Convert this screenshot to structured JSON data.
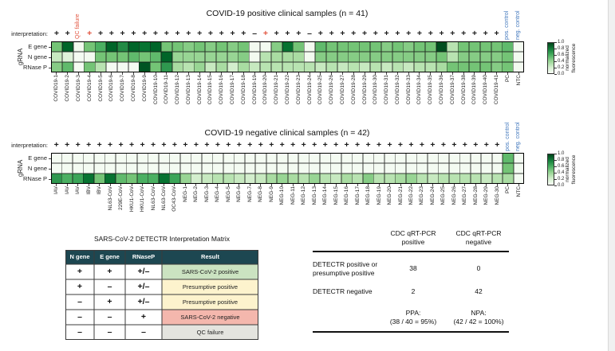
{
  "chart_data": [
    {
      "type": "heatmap",
      "title": "COVID-19 positive clinical samples (n = 41)",
      "interpretation_label": "interpretation:",
      "row_axis_label": "gRNA",
      "rows": [
        "E gene",
        "N gene",
        "RNase P"
      ],
      "columns": [
        "COVID19-1",
        "COVID19-2",
        "COVID19-3",
        "COVID19-4",
        "COVID19-5",
        "COVID19-6",
        "COVID19-7",
        "COVID19-8",
        "COVID19-9",
        "COVID19-10",
        "COVID19-11",
        "COVID19-12",
        "COVID19-13",
        "COVID19-14",
        "COVID19-15",
        "COVID19-16",
        "COVID19-17",
        "COVID19-18",
        "COVID19-19",
        "COVID19-20",
        "COVID19-21",
        "COVID19-22",
        "COVID19-23",
        "COVID19-24",
        "COVID19-25",
        "COVID19-26",
        "COVID19-27",
        "COVID19-28",
        "COVID19-29",
        "COVID19-30",
        "COVID19-31",
        "COVID19-32",
        "COVID19-33",
        "COVID19-34",
        "COVID19-35",
        "COVID19-36",
        "COVID19-37",
        "COVID19-38",
        "COVID19-39",
        "COVID19-40",
        "COVID19-41",
        "PC",
        "NTC"
      ],
      "interpretations": [
        "+",
        "+",
        "QC failure",
        "+*",
        "+",
        "+",
        "+",
        "+",
        "+",
        "+",
        "+",
        "+",
        "+",
        "+",
        "+",
        "+",
        "+",
        "+",
        "–",
        "+*",
        "+",
        "+",
        "+",
        "–",
        "+",
        "+",
        "+",
        "+",
        "+",
        "+",
        "+",
        "+",
        "+",
        "+",
        "+",
        "+",
        "+",
        "+",
        "+",
        "+",
        "+",
        "",
        ""
      ],
      "control_labels": [
        "pos. control",
        "neg. control"
      ],
      "series": [
        {
          "name": "E gene",
          "values": [
            0.5,
            0.9,
            0.05,
            0.5,
            0.6,
            0.9,
            0.75,
            0.9,
            0.85,
            0.9,
            0.5,
            0.5,
            0.45,
            0.5,
            0.45,
            0.5,
            0.45,
            0.5,
            0.03,
            0.03,
            0.45,
            0.85,
            0.5,
            0.03,
            0.55,
            0.5,
            0.5,
            0.5,
            0.5,
            0.5,
            0.45,
            0.5,
            0.45,
            0.5,
            0.5,
            0.97,
            0.3,
            0.5,
            0.5,
            0.5,
            0.5,
            0.55,
            0.03
          ]
        },
        {
          "name": "N gene",
          "values": [
            0.25,
            0.15,
            0.02,
            0.03,
            0.5,
            0.5,
            0.5,
            0.55,
            0.5,
            0.55,
            0.9,
            0.4,
            0.4,
            0.4,
            0.4,
            0.4,
            0.4,
            0.45,
            0.03,
            0.3,
            0.35,
            0.35,
            0.35,
            0.03,
            0.45,
            0.45,
            0.45,
            0.45,
            0.45,
            0.45,
            0.45,
            0.45,
            0.45,
            0.45,
            0.45,
            0.5,
            0.3,
            0.45,
            0.45,
            0.45,
            0.45,
            0.5,
            0.03
          ]
        },
        {
          "name": "RNase P",
          "values": [
            0.45,
            0.55,
            0.02,
            0.5,
            0.3,
            0.02,
            0.02,
            0.02,
            0.95,
            0.5,
            0.7,
            0.35,
            0.3,
            0.4,
            0.25,
            0.35,
            0.2,
            0.35,
            0.25,
            0.3,
            0.3,
            0.3,
            0.3,
            0.3,
            0.25,
            0.3,
            0.25,
            0.3,
            0.25,
            0.3,
            0.25,
            0.3,
            0.25,
            0.3,
            0.3,
            0.35,
            0.5,
            0.5,
            0.5,
            0.5,
            0.45,
            0.5,
            0.03
          ]
        }
      ],
      "value_range": [
        0,
        1
      ],
      "colorbar": {
        "ticks": [
          "1.0",
          "0.8",
          "0.6",
          "0.4",
          "0.2",
          "0.0"
        ],
        "label_line1": "normalized",
        "label_line2": "fluorescence"
      }
    },
    {
      "type": "heatmap",
      "title": "COVID-19 negative clinical samples (n = 42)",
      "interpretation_label": "interpretation:",
      "row_axis_label": "gRNA",
      "rows": [
        "E gene",
        "N gene",
        "RNase P"
      ],
      "columns": [
        "IAV",
        "IAV",
        "IAV",
        "IBV",
        "IBV",
        "NL63-CoV",
        "229E-CoV",
        "HKU1-CoV",
        "HKU1-CoV",
        "NL63-CoV",
        "NL63-CoV",
        "OC43-CoV",
        "NEG-1",
        "NEG-2",
        "NEG-3",
        "NEG-4",
        "NEG-5",
        "NEG-6",
        "NEG-7",
        "NEG-8",
        "NEG-9",
        "NEG-10",
        "NEG-11",
        "NEG-12",
        "NEG-13",
        "NEG-14",
        "NEG-15",
        "NEG-16",
        "NEG-17",
        "NEG-18",
        "NEG-19",
        "NEG-20",
        "NEG-21",
        "NEG-22",
        "NEG-23",
        "NEG-24",
        "NEG-25",
        "NEG-26",
        "NEG-27",
        "NEG-28",
        "NEG-29",
        "NEG-30",
        "PC",
        "NTC"
      ],
      "interpretations": [
        "+",
        "+",
        "+",
        "+",
        "+",
        "+",
        "+",
        "+",
        "+",
        "+",
        "+",
        "+",
        "+",
        "+",
        "+",
        "+",
        "+",
        "+",
        "+",
        "+",
        "+",
        "+",
        "+",
        "+",
        "+",
        "+",
        "+",
        "+",
        "+",
        "+",
        "+",
        "+",
        "+",
        "+",
        "+",
        "+",
        "+",
        "+",
        "+",
        "+",
        "+",
        "+",
        "",
        ""
      ],
      "control_labels": [
        "pos. control",
        "neg. control"
      ],
      "series": [
        {
          "name": "E gene",
          "values": [
            0.02,
            0.02,
            0.02,
            0.02,
            0.02,
            0.02,
            0.02,
            0.02,
            0.02,
            0.02,
            0.02,
            0.02,
            0.02,
            0.02,
            0.02,
            0.02,
            0.02,
            0.02,
            0.02,
            0.02,
            0.02,
            0.02,
            0.02,
            0.02,
            0.02,
            0.02,
            0.02,
            0.02,
            0.02,
            0.02,
            0.02,
            0.02,
            0.02,
            0.02,
            0.02,
            0.02,
            0.02,
            0.02,
            0.02,
            0.02,
            0.02,
            0.02,
            0.55,
            0.02
          ]
        },
        {
          "name": "N gene",
          "values": [
            0.02,
            0.02,
            0.02,
            0.02,
            0.02,
            0.02,
            0.02,
            0.02,
            0.02,
            0.02,
            0.02,
            0.02,
            0.02,
            0.02,
            0.02,
            0.02,
            0.02,
            0.02,
            0.02,
            0.02,
            0.02,
            0.02,
            0.02,
            0.02,
            0.02,
            0.02,
            0.02,
            0.02,
            0.02,
            0.02,
            0.02,
            0.02,
            0.02,
            0.02,
            0.02,
            0.02,
            0.02,
            0.02,
            0.02,
            0.02,
            0.02,
            0.02,
            0.5,
            0.02
          ]
        },
        {
          "name": "RNase P",
          "values": [
            0.7,
            0.6,
            0.65,
            0.85,
            0.5,
            0.85,
            0.55,
            0.5,
            0.6,
            0.6,
            0.85,
            0.65,
            0.4,
            0.2,
            0.25,
            0.3,
            0.3,
            0.25,
            0.2,
            0.25,
            0.35,
            0.4,
            0.35,
            0.3,
            0.4,
            0.3,
            0.25,
            0.35,
            0.3,
            0.45,
            0.3,
            0.3,
            0.35,
            0.4,
            0.3,
            0.25,
            0.3,
            0.3,
            0.3,
            0.3,
            0.25,
            0.3,
            0.35,
            0.02
          ]
        }
      ],
      "value_range": [
        0,
        1
      ],
      "colorbar": {
        "ticks": [
          "1.0",
          "0.8",
          "0.6",
          "0.4",
          "0.2",
          "0.0"
        ],
        "label_line1": "normalized",
        "label_line2": "fluorescence"
      }
    }
  ],
  "colors": {
    "accent_red": "#e2543f",
    "control_blue": "#3f76bc",
    "colormap_low": "#f7fcf5",
    "colormap_high": "#00441b",
    "matrix_header_bg": "#1d4751",
    "matrix_header_text": "#ffffff",
    "result_positive_bg": "#cbe3c1",
    "result_presumptive_bg": "#fdf3cd",
    "result_negative_bg": "#f4b7ad",
    "result_qc_bg": "#e4e4df"
  },
  "interpretation_matrix": {
    "title": "SARS-CoV-2 DETECTR Interpretation Matrix",
    "headers": [
      "N gene",
      "E gene",
      "RNaseP",
      "Result"
    ],
    "rows": [
      {
        "cells": [
          "+",
          "+",
          "+/–"
        ],
        "result": "SARS-CoV-2 positive",
        "bg_key": "result_positive_bg"
      },
      {
        "cells": [
          "+",
          "–",
          "+/–"
        ],
        "result": "Presumptive positive",
        "bg_key": "result_presumptive_bg"
      },
      {
        "cells": [
          "–",
          "+",
          "+/–"
        ],
        "result": "Presumptive positive",
        "bg_key": "result_presumptive_bg"
      },
      {
        "cells": [
          "–",
          "–",
          "+"
        ],
        "result": "SARS-CoV-2 negative",
        "bg_key": "result_negative_bg"
      },
      {
        "cells": [
          "–",
          "–",
          "–"
        ],
        "result": "QC failure",
        "bg_key": "result_qc_bg"
      }
    ]
  },
  "comparison_table": {
    "col_headers": [
      [
        "CDC qRT-PCR",
        "positive"
      ],
      [
        "CDC qRT-PCR",
        "negative"
      ]
    ],
    "rows": [
      {
        "label": [
          "DETECTR positive or",
          "presumptive positive"
        ],
        "values": [
          "38",
          "0"
        ]
      },
      {
        "label": [
          "DETECTR negative"
        ],
        "values": [
          "2",
          "42"
        ]
      }
    ],
    "footers": [
      [
        "PPA:",
        "(38 / 40 = 95%)"
      ],
      [
        "NPA:",
        "(42 / 42 = 100%)"
      ]
    ]
  }
}
